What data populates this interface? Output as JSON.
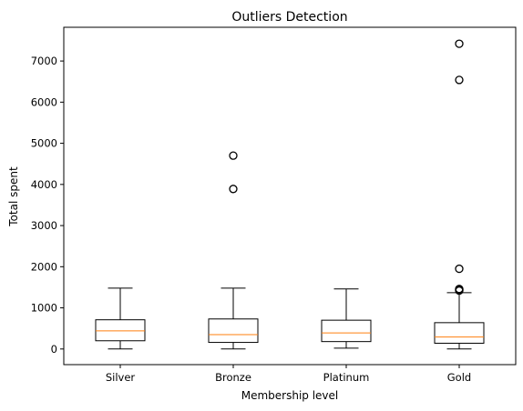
{
  "chart_data": {
    "type": "box",
    "title": "Outliers Detection",
    "xlabel": "Membership level",
    "ylabel": "Total spent",
    "ylim": [
      -380,
      7820
    ],
    "yticks": [
      0,
      1000,
      2000,
      3000,
      4000,
      5000,
      6000,
      7000
    ],
    "categories": [
      "Silver",
      "Bronze",
      "Platinum",
      "Gold"
    ],
    "boxes": [
      {
        "category": "Silver",
        "whisker_low": 0,
        "q1": 200,
        "median": 440,
        "q3": 710,
        "whisker_high": 1480,
        "outliers": []
      },
      {
        "category": "Bronze",
        "whisker_low": 0,
        "q1": 160,
        "median": 350,
        "q3": 730,
        "whisker_high": 1480,
        "outliers": [
          3890,
          4700
        ]
      },
      {
        "category": "Platinum",
        "whisker_low": 20,
        "q1": 180,
        "median": 390,
        "q3": 700,
        "whisker_high": 1460,
        "outliers": []
      },
      {
        "category": "Gold",
        "whisker_low": 0,
        "q1": 140,
        "median": 290,
        "q3": 640,
        "whisker_high": 1370,
        "outliers": [
          1420,
          1440,
          1460,
          1950,
          6540,
          7420
        ]
      }
    ],
    "colors": {
      "box": "#000000",
      "median": "#ff7f0e",
      "outlier_edge": "#000000"
    },
    "grid": false,
    "legend": "none"
  }
}
